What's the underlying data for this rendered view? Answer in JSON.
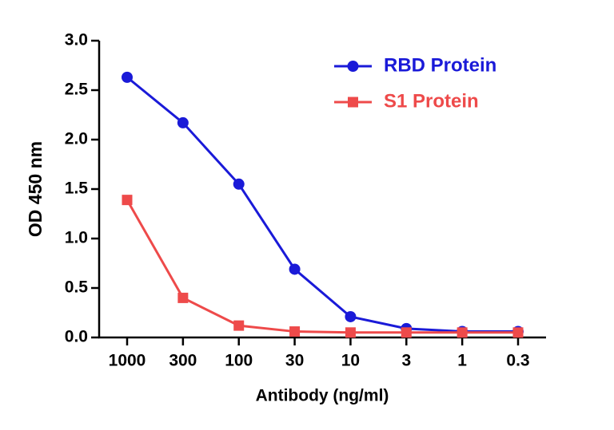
{
  "chart_data": {
    "type": "line",
    "x_label": "Antibody (ng/ml)",
    "y_label": "OD 450 nm",
    "categories": [
      "1000",
      "300",
      "100",
      "30",
      "10",
      "3",
      "1",
      "0.3"
    ],
    "series": [
      {
        "name": "RBD Protein",
        "color": "#1a1ad8",
        "marker": "circle",
        "values": [
          2.63,
          2.17,
          1.55,
          0.69,
          0.21,
          0.09,
          0.06,
          0.06
        ]
      },
      {
        "name": "S1 Protein",
        "color": "#ee4a4a",
        "marker": "square",
        "values": [
          1.39,
          0.4,
          0.12,
          0.06,
          0.05,
          0.05,
          0.05,
          0.05
        ]
      }
    ],
    "ylim": [
      0,
      3
    ],
    "yticks": [
      {
        "value": 0,
        "label": "0.0"
      },
      0.5,
      {
        "value": 1,
        "label": "1.0"
      },
      1.5,
      {
        "value": 2,
        "label": "2.0"
      },
      2.5,
      {
        "value": 3,
        "label": "3.0"
      }
    ],
    "legend": "upper right"
  }
}
